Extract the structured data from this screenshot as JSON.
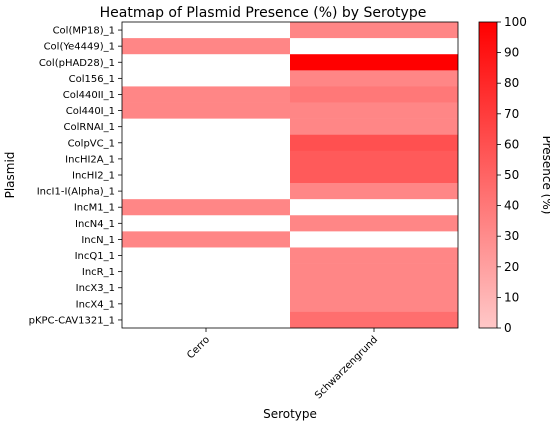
{
  "chart_data": {
    "type": "heatmap",
    "title": "Heatmap of Plasmid Presence (%) by Serotype",
    "xlabel": "Serotype",
    "ylabel": "Plasmid",
    "x_categories": [
      "Cerro",
      "Schwarzengrund"
    ],
    "y_categories": [
      "Col(MP18)_1",
      "Col(Ye4449)_1",
      "Col(pHAD28)_1",
      "Col156_1",
      "Col440II_1",
      "Col440I_1",
      "ColRNAI_1",
      "ColpVC_1",
      "IncHI2A_1",
      "IncHI2_1",
      "IncI1-I(Alpha)_1",
      "IncM1_1",
      "IncN4_1",
      "IncN_1",
      "IncQ1_1",
      "IncR_1",
      "IncX3_1",
      "IncX4_1",
      "pKPC-CAV1321_1"
    ],
    "values": [
      [
        0,
        33
      ],
      [
        33,
        0
      ],
      [
        0,
        100
      ],
      [
        0,
        33
      ],
      [
        33,
        40
      ],
      [
        33,
        33
      ],
      [
        0,
        33
      ],
      [
        0,
        60
      ],
      [
        0,
        55
      ],
      [
        0,
        55
      ],
      [
        0,
        33
      ],
      [
        33,
        0
      ],
      [
        0,
        33
      ],
      [
        33,
        0
      ],
      [
        0,
        33
      ],
      [
        0,
        33
      ],
      [
        0,
        33
      ],
      [
        0,
        33
      ],
      [
        0,
        45
      ]
    ],
    "colorbar": {
      "label": "Presence (%)",
      "range": [
        0,
        100
      ],
      "ticks": [
        0,
        10,
        20,
        30,
        40,
        50,
        60,
        70,
        80,
        90,
        100
      ],
      "colormap": "Reds (light pink to red)",
      "low_color": "#ffc8c8",
      "high_color": "#ff0000"
    },
    "zero_color": "#ffffff",
    "grid": false
  }
}
